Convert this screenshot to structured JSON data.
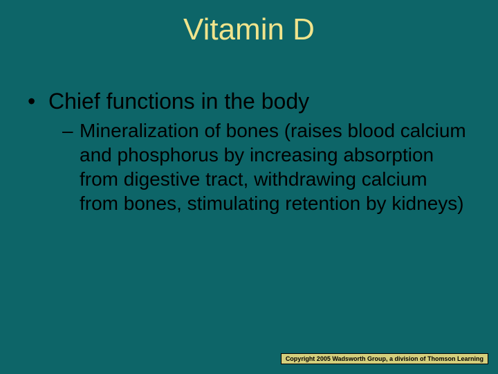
{
  "background_color": "#0d6568",
  "title_color": "#f0e48c",
  "text_color": "#000000",
  "copyright_bg": "#d4cf7c",
  "title": "Vitamin D",
  "bullet_level1": "Chief functions in the body",
  "bullet_level2": "Mineralization of bones (raises blood calcium and phosphorus by increasing absorption from digestive tract, withdrawing calcium from bones, stimulating retention by kidneys)",
  "copyright": "Copyright 2005 Wadsworth Group, a division of Thomson Learning",
  "fonts": {
    "title_size": 44,
    "bullet1_size": 32,
    "bullet2_size": 28,
    "copyright_size": 9
  }
}
